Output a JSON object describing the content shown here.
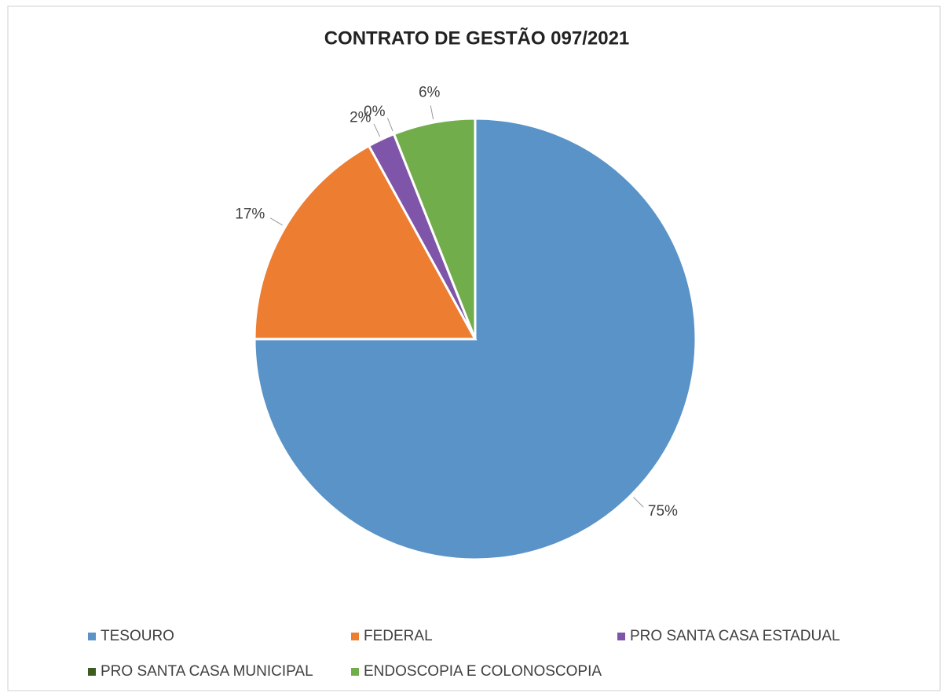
{
  "chart_data": {
    "type": "pie",
    "title": "CONTRATO DE GESTÃO 097/2021",
    "categories": [
      "TESOURO",
      "FEDERAL",
      "PRO SANTA CASA ESTADUAL",
      "PRO SANTA CASA MUNICIPAL",
      "ENDOSCOPIA E COLONOSCOPIA"
    ],
    "values": [
      75,
      17,
      2,
      0,
      6
    ],
    "value_labels": [
      "75%",
      "17%",
      "2%",
      "0%",
      "6%"
    ],
    "colors": [
      "#5a93c7",
      "#ed7d31",
      "#7e55a8",
      "#3e5c22",
      "#72ad4c"
    ],
    "legend": "bottom"
  }
}
